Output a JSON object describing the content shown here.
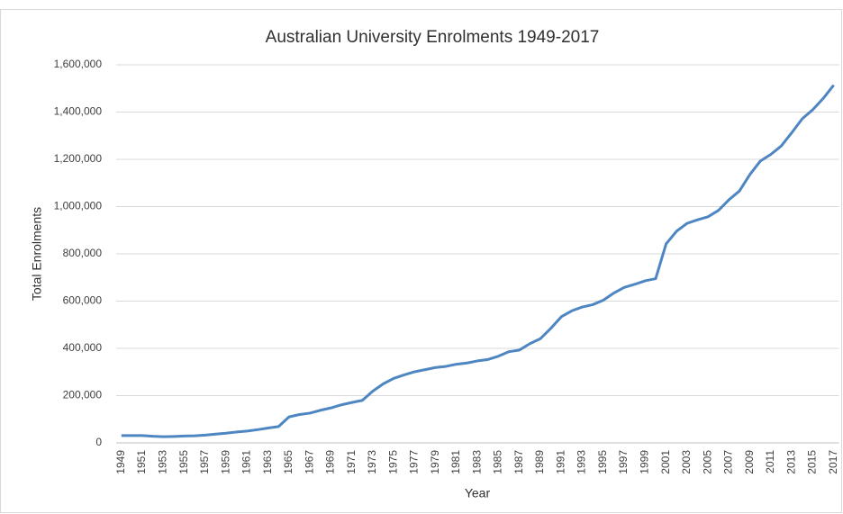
{
  "chart_data": {
    "type": "line",
    "title": "Australian University Enrolments 1949-2017",
    "x_label": "Year",
    "y_label": "Total Enrolments",
    "categories": [
      "1949",
      null,
      "1951",
      null,
      "1953",
      null,
      "1955",
      null,
      "1957",
      null,
      "1959",
      null,
      "1961",
      null,
      "1963",
      null,
      "1965",
      null,
      "1967",
      null,
      "1969",
      null,
      "1971",
      null,
      "1973",
      null,
      "1975",
      null,
      "1977",
      null,
      "1979",
      null,
      "1981",
      null,
      "1983",
      null,
      "1985",
      null,
      "1987",
      null,
      "1989",
      null,
      "1991",
      null,
      "1993",
      null,
      "1995",
      null,
      "1997",
      null,
      "1999",
      null,
      "2001",
      null,
      "2003",
      null,
      "2005",
      null,
      "2007",
      null,
      "2009",
      null,
      "2011",
      null,
      "2013",
      null,
      "2015",
      null,
      "2017"
    ],
    "series": [
      {
        "name": "Total Enrolments",
        "color": "#4e86c2",
        "values": [
          31000,
          31000,
          31000,
          28000,
          26000,
          27000,
          29000,
          30000,
          33000,
          37000,
          41000,
          46000,
          50000,
          56000,
          63000,
          69000,
          110000,
          120000,
          126000,
          138000,
          148000,
          161000,
          171000,
          180000,
          219000,
          250000,
          273000,
          288000,
          301000,
          310000,
          319000,
          324000,
          333000,
          338000,
          347000,
          353000,
          367000,
          386000,
          393000,
          420000,
          441000,
          485000,
          534000,
          559000,
          575000,
          585000,
          604000,
          634000,
          658000,
          671000,
          686000,
          695000,
          842000,
          896000,
          929000,
          944000,
          957000,
          984000,
          1029000,
          1066000,
          1136000,
          1193000,
          1221000,
          1257000,
          1313000,
          1372000,
          1410000,
          1458000,
          1514000
        ]
      }
    ],
    "ylim": [
      0,
      1600000
    ],
    "yticks": [
      0,
      {
        "value": 200000,
        "label": "200,000"
      },
      {
        "value": 400000,
        "label": "400,000"
      },
      {
        "value": 600000,
        "label": "600,000"
      },
      {
        "value": 800000,
        "label": "800,000"
      },
      {
        "value": 1000000,
        "label": "1,000,000"
      },
      {
        "value": 1200000,
        "label": "1,200,000"
      },
      {
        "value": 1400000,
        "label": "1,400,000"
      },
      {
        "value": 1600000,
        "label": "1,600,000"
      }
    ],
    "grid": true
  }
}
